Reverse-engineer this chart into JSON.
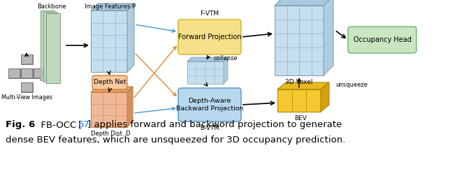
{
  "fig_width": 6.64,
  "fig_height": 2.52,
  "dpi": 100,
  "bg_color": "#ffffff",
  "caption_ref_color": "#1a75ff",
  "caption_fontsize": 9.5,
  "elements": {
    "backbone_label": "Backbone",
    "multiview_label": "Multi-View Images",
    "image_features_label": "Image Features P",
    "depth_net_label": "Depth Net",
    "depth_dist_label": "Depth Dist. D",
    "fvtm_label": "F-VTM",
    "forward_proj_label": "Forward Projection",
    "bvtm_label": "B-VTM",
    "backward_proj_label": "Depth-Aware\nBackward Projection",
    "collapse_label": "collapse",
    "voxel_label": "3D Voxel",
    "unsqueeze_label": "unsqueeze",
    "bev_label": "BEV",
    "occupancy_label": "Occupancy Head"
  },
  "colors": {
    "blue_face": "#c5dff0",
    "blue_top": "#a8c8e0",
    "blue_right": "#b0cce0",
    "blue_grid": "#8faabb",
    "orange_face": "#f0b896",
    "orange_top": "#e0a070",
    "orange_right": "#d09060",
    "orange_grid": "#cc8866",
    "yellow_box": "#f7e08a",
    "yellow_edge": "#ccaa00",
    "blue_box": "#b8d8f0",
    "blue_box_edge": "#4488bb",
    "green_box": "#c8e6c0",
    "green_box_edge": "#66aa66",
    "backbone_green": "#c0d8c0",
    "backbone_edge": "#779977",
    "bev_face": "#f4c830",
    "bev_top": "#e8b820",
    "bev_right": "#d4a010",
    "bev_edge": "#aa8800",
    "depth_net_face": "#f5c8a0",
    "depth_net_edge": "#cc7733",
    "arrow_blue": "#4499cc",
    "arrow_orange": "#dd8833"
  }
}
